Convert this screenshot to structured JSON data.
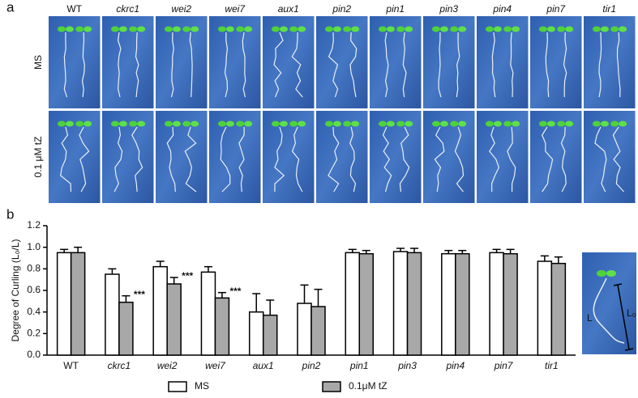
{
  "panel_a": {
    "label": "a",
    "columns": [
      "WT",
      "ckrc1",
      "wei2",
      "wei7",
      "aux1",
      "pin2",
      "pin1",
      "pin3",
      "pin4",
      "pin7",
      "tir1"
    ],
    "rows": [
      "MS",
      "0.1 μM tZ"
    ]
  },
  "chart_data": {
    "type": "bar",
    "label": "b",
    "y_label": "Degree of Curling (L₀/L)",
    "categories": [
      "WT",
      "ckrc1",
      "wei2",
      "wei7",
      "aux1",
      "pin2",
      "pin1",
      "pin3",
      "pin4",
      "pin7",
      "tir1"
    ],
    "series": [
      {
        "name": "MS",
        "color": "#ffffff",
        "values": [
          0.95,
          0.75,
          0.82,
          0.77,
          0.4,
          0.48,
          0.95,
          0.96,
          0.94,
          0.95,
          0.87
        ],
        "errors": [
          0.03,
          0.05,
          0.05,
          0.05,
          0.17,
          0.17,
          0.03,
          0.03,
          0.03,
          0.03,
          0.05
        ]
      },
      {
        "name": "0.1μM tZ",
        "color": "#a8a8a8",
        "values": [
          0.95,
          0.49,
          0.66,
          0.53,
          0.37,
          0.45,
          0.94,
          0.95,
          0.94,
          0.94,
          0.85
        ],
        "errors": [
          0.05,
          0.06,
          0.06,
          0.05,
          0.14,
          0.16,
          0.03,
          0.04,
          0.03,
          0.04,
          0.06
        ],
        "significance": [
          null,
          "***",
          "***",
          "***",
          null,
          null,
          null,
          null,
          null,
          null,
          null
        ]
      }
    ],
    "ylim": [
      0,
      1.2
    ],
    "yticks": [
      {
        "value": 0,
        "label": "0.0"
      },
      0.2,
      0.4,
      0.6,
      0.8,
      {
        "value": 1,
        "label": "1.0"
      },
      1.2
    ],
    "inset": {
      "labels": [
        "L",
        "L₀"
      ]
    }
  }
}
